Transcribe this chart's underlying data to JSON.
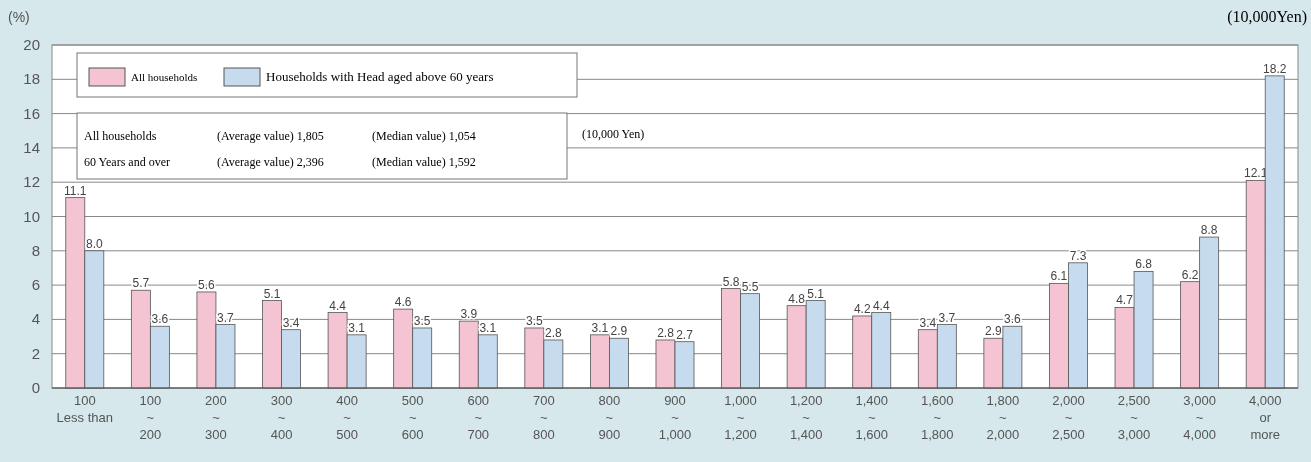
{
  "chart_data": {
    "type": "bar",
    "xlabel": "(10,000Yen)",
    "ylabel": "(%)",
    "categories": [
      "100\nLess than",
      "100\n~\n200",
      "200\n~\n300",
      "300\n~\n400",
      "400\n~\n500",
      "500\n~\n600",
      "600\n~\n700",
      "700\n~\n800",
      "800\n~\n900",
      "900\n~\n1,000",
      "1,000\n~\n1,200",
      "1,200\n~\n1,400",
      "1,400\n~\n1,600",
      "1,600\n~\n1,800",
      "1,800\n~\n2,000",
      "2,000\n~\n2,500",
      "2,500\n~\n3,000",
      "3,000\n~\n4,000",
      "4,000\nor\nmore"
    ],
    "series": [
      {
        "name": "All households",
        "color": "#f4c4d2",
        "values": [
          11.1,
          5.7,
          5.6,
          5.1,
          4.4,
          4.6,
          3.9,
          3.5,
          3.1,
          2.8,
          5.8,
          4.8,
          4.2,
          3.4,
          2.9,
          6.1,
          4.7,
          6.2,
          12.1
        ]
      },
      {
        "name": "Households with Head aged above 60 years",
        "color": "#c6dcee",
        "value_labels": [
          "8.0",
          "3.6",
          "3.7",
          "3.4",
          "3.1",
          "3.5",
          "3.1",
          "2.8",
          "2.9",
          "2.7",
          "5.5",
          "5.1",
          "4.4",
          "3.7",
          "3.6",
          "7.3",
          "6.8",
          "8.8",
          "18.2"
        ],
        "values": [
          8.0,
          3.6,
          3.7,
          3.4,
          3.1,
          3.5,
          3.1,
          2.8,
          2.9,
          2.7,
          5.5,
          5.1,
          4.4,
          3.7,
          3.6,
          7.3,
          6.8,
          8.8,
          18.2
        ]
      }
    ],
    "ylim": [
      0,
      20
    ],
    "yticks": [
      0,
      2,
      4,
      6,
      8,
      10,
      12,
      14,
      16,
      18,
      20
    ],
    "grid": "y",
    "legend": "top left",
    "data_labels": true,
    "annotations": [
      "All households",
      "(Average value) 1,805",
      "(Median value) 1,054",
      "60 Years and over",
      "(Average value) 2,396",
      "(Median value) 1,592",
      "(10,000 Yen)"
    ]
  }
}
